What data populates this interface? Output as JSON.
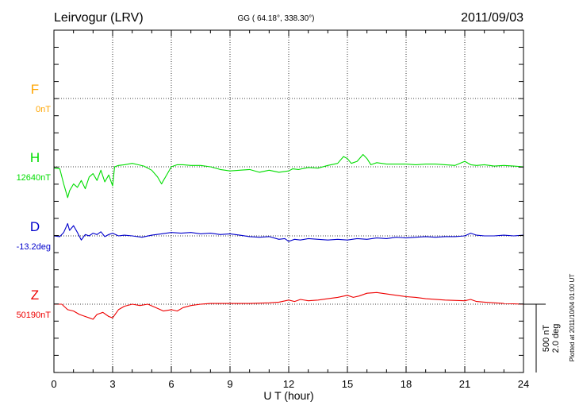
{
  "header": {
    "station": "Leirvogur (LRV)",
    "coords": "GG ( 64.18°, 338.30°)",
    "date": "2011/09/03"
  },
  "footer": {
    "xlabel": "U T (hour)",
    "plotted_note": "Plotted at 2011/10/04 01:00 UT"
  },
  "scale": {
    "nt": "500 nT",
    "deg": "2.0 deg"
  },
  "components": [
    {
      "name": "F",
      "baseline": "0nT",
      "color": "#ffa500"
    },
    {
      "name": "H",
      "baseline": "12640nT",
      "color": "#00dd00"
    },
    {
      "name": "D",
      "baseline": "-13.2deg",
      "color": "#0000cc"
    },
    {
      "name": "Z",
      "baseline": "50190nT",
      "color": "#ee0000"
    }
  ],
  "chart_data": {
    "type": "line",
    "xlabel": "U T (hour)",
    "xlim": [
      0,
      24
    ],
    "x_ticks": [
      0,
      3,
      6,
      9,
      12,
      15,
      18,
      21,
      24
    ],
    "grid": true,
    "units_per_band": "500 nT / 2.0 deg",
    "series": [
      {
        "name": "F",
        "color": "#ffa500",
        "x": [],
        "y": []
      },
      {
        "name": "H",
        "color": "#00dd00",
        "x": [
          0,
          0.3,
          0.5,
          0.7,
          0.8,
          1.0,
          1.2,
          1.4,
          1.6,
          1.8,
          2.0,
          2.2,
          2.4,
          2.6,
          2.8,
          3.0,
          3.1,
          3.3,
          3.6,
          4.0,
          4.3,
          4.6,
          5.0,
          5.3,
          5.5,
          5.6,
          5.8,
          6.0,
          6.3,
          6.6,
          7.0,
          7.5,
          8.0,
          8.5,
          9.0,
          9.5,
          10.0,
          10.5,
          11.0,
          11.5,
          12.0,
          12.2,
          12.5,
          13.0,
          13.5,
          14.0,
          14.5,
          14.8,
          15.0,
          15.2,
          15.5,
          15.8,
          16.0,
          16.2,
          16.5,
          17.0,
          17.5,
          18.0,
          18.5,
          19.0,
          19.5,
          20.0,
          20.5,
          21.0,
          21.3,
          21.6,
          22.0,
          22.5,
          23.0,
          23.5,
          24.0
        ],
        "y": [
          -0.02,
          -0.03,
          -0.25,
          -0.45,
          -0.35,
          -0.25,
          -0.3,
          -0.2,
          -0.32,
          -0.15,
          -0.1,
          -0.2,
          -0.05,
          -0.22,
          -0.12,
          -0.28,
          0.0,
          0.02,
          0.03,
          0.05,
          0.03,
          0.01,
          -0.05,
          -0.15,
          -0.25,
          -0.2,
          -0.1,
          0.0,
          0.03,
          0.03,
          0.02,
          0.02,
          0.0,
          -0.04,
          -0.06,
          -0.05,
          -0.04,
          -0.08,
          -0.05,
          -0.08,
          -0.06,
          -0.03,
          -0.04,
          -0.01,
          -0.02,
          0.02,
          0.05,
          0.15,
          0.12,
          0.05,
          0.08,
          0.18,
          0.12,
          0.03,
          0.06,
          0.04,
          0.04,
          0.04,
          0.03,
          0.04,
          0.04,
          0.03,
          0.02,
          0.08,
          0.03,
          0.02,
          0.03,
          0.01,
          0.02,
          0.01,
          0.0
        ]
      },
      {
        "name": "D",
        "color": "#0000cc",
        "x": [
          0,
          0.3,
          0.5,
          0.7,
          0.8,
          1.0,
          1.2,
          1.4,
          1.6,
          1.8,
          2.0,
          2.2,
          2.4,
          2.6,
          2.8,
          3.0,
          3.3,
          3.6,
          4.0,
          4.5,
          5.0,
          5.5,
          6.0,
          6.5,
          7.0,
          7.5,
          8.0,
          8.5,
          9.0,
          9.5,
          10.0,
          10.5,
          11.0,
          11.5,
          11.8,
          12.0,
          12.3,
          12.6,
          13.0,
          13.5,
          14.0,
          14.5,
          15.0,
          15.5,
          16.0,
          16.5,
          17.0,
          17.5,
          18.0,
          18.5,
          19.0,
          19.5,
          20.0,
          20.5,
          21.0,
          21.3,
          21.6,
          22.0,
          22.5,
          23.0,
          23.5,
          24.0
        ],
        "y": [
          0.0,
          -0.01,
          0.05,
          0.18,
          0.08,
          0.15,
          0.05,
          -0.06,
          0.02,
          0.0,
          0.04,
          0.02,
          0.06,
          -0.01,
          0.02,
          0.04,
          0.0,
          0.01,
          0.0,
          -0.02,
          0.01,
          0.03,
          0.05,
          0.04,
          0.05,
          0.03,
          0.04,
          0.02,
          0.03,
          0.01,
          -0.01,
          -0.02,
          -0.01,
          -0.05,
          -0.04,
          -0.08,
          -0.05,
          -0.06,
          -0.04,
          -0.05,
          -0.06,
          -0.05,
          -0.06,
          -0.04,
          -0.05,
          -0.03,
          -0.04,
          -0.02,
          -0.03,
          -0.02,
          -0.01,
          -0.02,
          -0.01,
          -0.01,
          0.0,
          0.04,
          0.01,
          0.0,
          0.0,
          0.01,
          0.0,
          0.01
        ]
      },
      {
        "name": "Z",
        "color": "#ee0000",
        "x": [
          0,
          0.4,
          0.7,
          1.0,
          1.3,
          1.6,
          1.8,
          2.0,
          2.2,
          2.5,
          2.8,
          3.0,
          3.3,
          3.6,
          4.0,
          4.4,
          4.8,
          5.2,
          5.6,
          6.0,
          6.3,
          6.6,
          7.0,
          7.5,
          8.0,
          9.0,
          10.0,
          11.0,
          11.5,
          12.0,
          12.3,
          12.6,
          13.0,
          13.5,
          14.0,
          14.5,
          15.0,
          15.3,
          15.6,
          16.0,
          16.5,
          17.0,
          17.5,
          18.0,
          18.5,
          19.0,
          20.0,
          21.0,
          21.3,
          21.6,
          22.0,
          23.0,
          24.0
        ],
        "y": [
          0.0,
          0.0,
          -0.08,
          -0.1,
          -0.15,
          -0.18,
          -0.2,
          -0.22,
          -0.15,
          -0.12,
          -0.18,
          -0.2,
          -0.08,
          -0.03,
          0.0,
          -0.02,
          0.0,
          -0.05,
          -0.1,
          -0.08,
          -0.1,
          -0.05,
          -0.02,
          0.0,
          0.01,
          0.01,
          0.01,
          0.02,
          0.03,
          0.06,
          0.04,
          0.07,
          0.05,
          0.06,
          0.08,
          0.1,
          0.13,
          0.1,
          0.12,
          0.16,
          0.17,
          0.15,
          0.13,
          0.11,
          0.1,
          0.08,
          0.06,
          0.05,
          0.07,
          0.04,
          0.03,
          0.01,
          0.0
        ]
      }
    ]
  }
}
